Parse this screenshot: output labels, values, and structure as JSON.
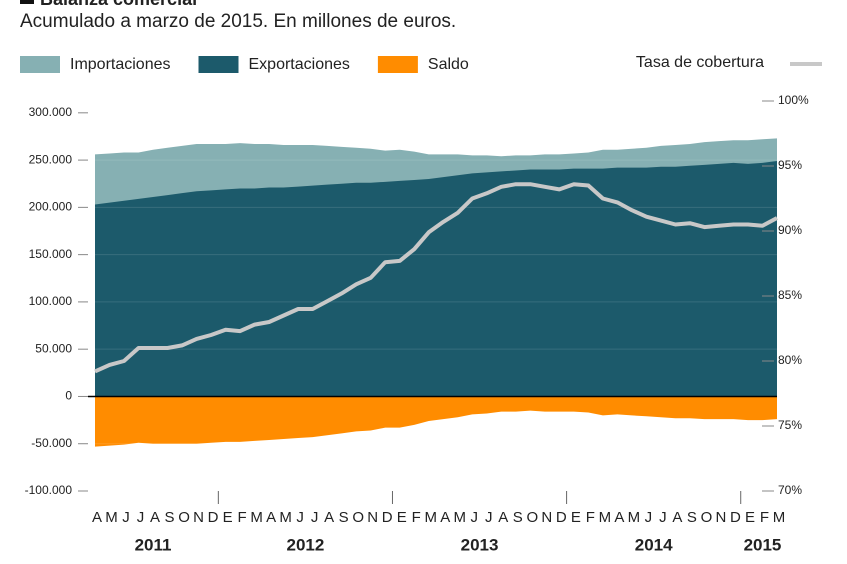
{
  "chart_data": {
    "type": "area",
    "title": "Balanza comercial",
    "subtitle": "Acumulado a marzo de 2015. En millones de euros.",
    "categories": [
      "A",
      "M",
      "J",
      "J",
      "A",
      "S",
      "O",
      "N",
      "D",
      "E",
      "F",
      "M",
      "A",
      "M",
      "J",
      "J",
      "A",
      "S",
      "O",
      "N",
      "D",
      "E",
      "F",
      "M",
      "A",
      "M",
      "J",
      "J",
      "A",
      "S",
      "O",
      "N",
      "D",
      "E",
      "F",
      "M",
      "A",
      "M",
      "J",
      "J",
      "A",
      "S",
      "O",
      "N",
      "D",
      "E",
      "F",
      "M"
    ],
    "year_groups": [
      {
        "label": "2011",
        "count": 9
      },
      {
        "label": "2012",
        "count": 12
      },
      {
        "label": "2013",
        "count": 12
      },
      {
        "label": "2014",
        "count": 12
      },
      {
        "label": "2015",
        "count": 3
      }
    ],
    "series": [
      {
        "name": "Importaciones",
        "color": "#86b0b3",
        "type": "area",
        "values": [
          256000,
          257000,
          258000,
          258000,
          261000,
          263000,
          265000,
          267000,
          267000,
          267000,
          268000,
          267000,
          267000,
          266000,
          266000,
          266000,
          265000,
          264000,
          263000,
          262000,
          260000,
          261000,
          259000,
          256000,
          256000,
          256000,
          255000,
          255000,
          254000,
          255000,
          255000,
          256000,
          256000,
          257000,
          258000,
          261000,
          261000,
          262000,
          263000,
          265000,
          266000,
          267000,
          269000,
          270000,
          271000,
          271000,
          272000,
          273000
        ]
      },
      {
        "name": "Exportaciones",
        "color": "#1c5a6b",
        "type": "area",
        "values": [
          203000,
          205000,
          207000,
          209000,
          211000,
          213000,
          215000,
          217000,
          218000,
          219000,
          220000,
          220000,
          221000,
          221000,
          222000,
          223000,
          224000,
          225000,
          226000,
          226000,
          227000,
          228000,
          229000,
          230000,
          232000,
          234000,
          236000,
          237000,
          238000,
          239000,
          240000,
          240000,
          240000,
          241000,
          241000,
          241000,
          242000,
          242000,
          242000,
          243000,
          243000,
          244000,
          245000,
          246000,
          247000,
          246000,
          247000,
          249000
        ]
      },
      {
        "name": "Saldo",
        "color": "#ff8c00",
        "type": "area",
        "values": [
          -53000,
          -52000,
          -51000,
          -49000,
          -50000,
          -50000,
          -50000,
          -50000,
          -49000,
          -48000,
          -48000,
          -47000,
          -46000,
          -45000,
          -44000,
          -43000,
          -41000,
          -39000,
          -37000,
          -36000,
          -33000,
          -33000,
          -30000,
          -26000,
          -24000,
          -22000,
          -19000,
          -18000,
          -16000,
          -16000,
          -15000,
          -16000,
          -16000,
          -16000,
          -17000,
          -20000,
          -19000,
          -20000,
          -21000,
          -22000,
          -23000,
          -23000,
          -24000,
          -24000,
          -24000,
          -25000,
          -25000,
          -24000
        ]
      },
      {
        "name": "Tasa de cobertura",
        "color": "#c8c8c8",
        "type": "line",
        "axis": "y2",
        "values": [
          79.2,
          79.7,
          80.0,
          81.0,
          81.0,
          81.0,
          81.2,
          81.7,
          82.0,
          82.4,
          82.3,
          82.8,
          83.0,
          83.5,
          84.0,
          84.0,
          84.6,
          85.2,
          85.9,
          86.4,
          87.6,
          87.7,
          88.6,
          89.9,
          90.7,
          91.4,
          92.5,
          92.9,
          93.4,
          93.6,
          93.6,
          93.4,
          93.2,
          93.6,
          93.5,
          92.5,
          92.2,
          91.6,
          91.1,
          90.8,
          90.5,
          90.6,
          90.3,
          90.4,
          90.5,
          90.5,
          90.4,
          91.0
        ]
      }
    ],
    "ylim": [
      -100000,
      312500
    ],
    "yticks": [
      {
        "value": -100000,
        "label": "-100.000"
      },
      {
        "value": -50000,
        "label": "-50.000"
      },
      0,
      {
        "value": 50000,
        "label": "50.000"
      },
      {
        "value": 100000,
        "label": "100.000"
      },
      {
        "value": 150000,
        "label": "150.000"
      },
      {
        "value": 200000,
        "label": "200.000"
      },
      {
        "value": 250000,
        "label": "250.000"
      },
      {
        "value": 300000,
        "label": "300.000"
      }
    ],
    "y2lim": [
      70,
      100
    ],
    "y2ticks": [
      {
        "value": 70,
        "label": "70%"
      },
      {
        "value": 75,
        "label": "75%"
      },
      {
        "value": 80,
        "label": "80%"
      },
      {
        "value": 85,
        "label": "85%"
      },
      {
        "value": 90,
        "label": "90%"
      },
      {
        "value": 95,
        "label": "95%"
      },
      {
        "value": 100,
        "label": "100%"
      }
    ],
    "grid": true
  }
}
